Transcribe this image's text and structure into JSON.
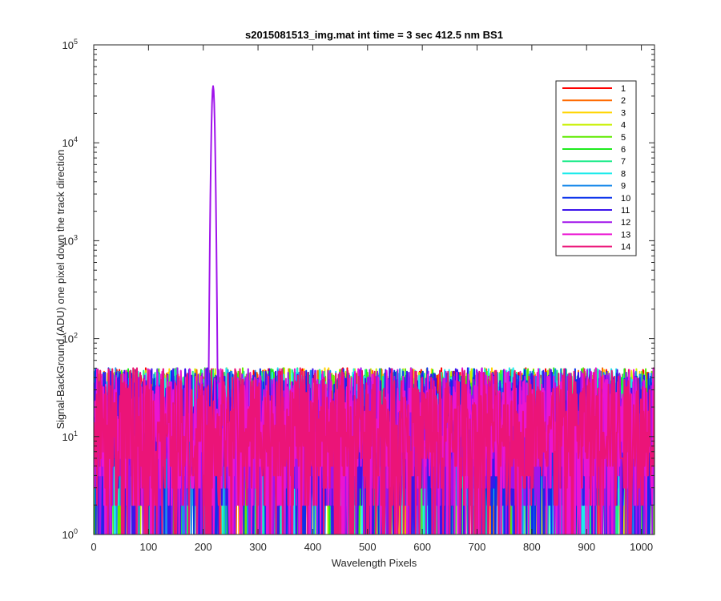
{
  "chart_data": {
    "type": "line",
    "title": "s2015081513_img.mat int time = 3 sec  412.5 nm BS1",
    "xlabel": "Wavelength Pixels",
    "ylabel": "Signal-BackGround (ADU) one pixel down the track direction",
    "xlim": [
      0,
      1024
    ],
    "ylim": [
      1,
      100000
    ],
    "yscale": "log",
    "x_ticks": [
      "0",
      "100",
      "200",
      "300",
      "400",
      "500",
      "600",
      "700",
      "800",
      "900",
      "1000"
    ],
    "y_ticks": [
      {
        "base": "10",
        "exp": "0"
      },
      {
        "base": "10",
        "exp": "1"
      },
      {
        "base": "10",
        "exp": "2"
      },
      {
        "base": "10",
        "exp": "3"
      },
      {
        "base": "10",
        "exp": "4"
      },
      {
        "base": "10",
        "exp": "5"
      }
    ],
    "grid": false,
    "legend_position": "top-right",
    "noise": {
      "x_start": 1,
      "x_end": 1024,
      "typical_range": [
        1,
        50
      ]
    },
    "peak": {
      "series": "12",
      "x": 218,
      "y": 38000
    },
    "series": [
      {
        "name": "1",
        "color": "#FF0000"
      },
      {
        "name": "2",
        "color": "#FF6A00"
      },
      {
        "name": "3",
        "color": "#FFD400"
      },
      {
        "name": "4",
        "color": "#C8F000"
      },
      {
        "name": "5",
        "color": "#5EEB00"
      },
      {
        "name": "6",
        "color": "#1EEB1E"
      },
      {
        "name": "7",
        "color": "#1EEB8C"
      },
      {
        "name": "8",
        "color": "#1EEBEB"
      },
      {
        "name": "9",
        "color": "#1E8CEB"
      },
      {
        "name": "10",
        "color": "#0A32EB"
      },
      {
        "name": "11",
        "color": "#3C14EB"
      },
      {
        "name": "12",
        "color": "#A014EB"
      },
      {
        "name": "13",
        "color": "#EB14D2"
      },
      {
        "name": "14",
        "color": "#EB1478"
      }
    ]
  }
}
